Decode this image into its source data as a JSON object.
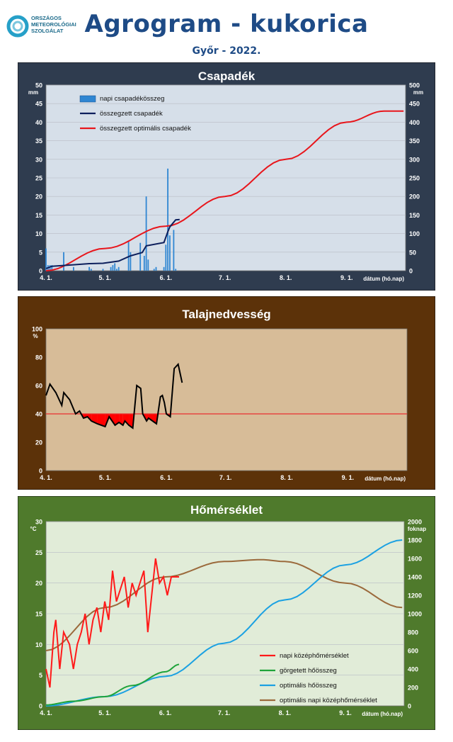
{
  "header": {
    "logo_lines": [
      "ORSZÁGOS",
      "METEOROLÓGIAI",
      "SZOLGÁLAT"
    ],
    "title": "Agrogram - kukorica",
    "subtitle": "Győr - 2022."
  },
  "chart_data": [
    {
      "type": "bar",
      "title": "Csapadék",
      "xlabel": "dátum (hó.nap)",
      "x_ticks": [
        "4. 1.",
        "5. 1.",
        "6. 1.",
        "7. 1.",
        "8. 1.",
        "9. 1."
      ],
      "ylabel_left": "mm",
      "ylim_left": [
        0,
        50
      ],
      "yticks_left": [
        0,
        5,
        10,
        15,
        20,
        25,
        30,
        35,
        40,
        45,
        50
      ],
      "ylabel_right": "mm",
      "ylim_right": [
        0,
        500
      ],
      "yticks_right": [
        0,
        50,
        100,
        150,
        200,
        250,
        300,
        350,
        400,
        450,
        500
      ],
      "legend_position": "top-left",
      "series": [
        {
          "name": "napi csapadékösszeg",
          "kind": "bar",
          "axis": "left",
          "color": "#2f86d2",
          "x": [
            "2022-04-01",
            "2022-04-02",
            "2022-04-03",
            "2022-04-04",
            "2022-04-10",
            "2022-04-15",
            "2022-04-23",
            "2022-04-24",
            "2022-04-30",
            "2022-05-04",
            "2022-05-05",
            "2022-05-06",
            "2022-05-07",
            "2022-05-08",
            "2022-05-13",
            "2022-05-14",
            "2022-05-19",
            "2022-05-21",
            "2022-05-22",
            "2022-05-23",
            "2022-05-26",
            "2022-05-27",
            "2022-05-31",
            "2022-06-01",
            "2022-06-02",
            "2022-06-03",
            "2022-06-05",
            "2022-06-06"
          ],
          "values": [
            6,
            1.5,
            1.5,
            1.5,
            5,
            1,
            1,
            0.5,
            0.5,
            1,
            1.5,
            2,
            0.5,
            1,
            8,
            5,
            7.5,
            4,
            20,
            3,
            0.5,
            1,
            1,
            7,
            27.5,
            9.5,
            11,
            0.5
          ]
        },
        {
          "name": "összegzett csapadék",
          "kind": "line",
          "axis": "right",
          "color": "#0d1f5c",
          "x": [
            "2022-04-01",
            "2022-04-04",
            "2022-04-15",
            "2022-04-23",
            "2022-04-30",
            "2022-05-08",
            "2022-05-14",
            "2022-05-20",
            "2022-05-22",
            "2022-05-31",
            "2022-06-02",
            "2022-06-03",
            "2022-06-06",
            "2022-06-08"
          ],
          "values": [
            6,
            12,
            16,
            19,
            20,
            26,
            40,
            49,
            67,
            76,
            105,
            118,
            137,
            138
          ]
        },
        {
          "name": "összegzett optimális csapadék",
          "kind": "line",
          "axis": "right",
          "color": "#e8161c",
          "x": [
            "2022-04-01",
            "2022-05-01",
            "2022-06-01",
            "2022-07-01",
            "2022-08-01",
            "2022-09-01",
            "2022-09-20",
            "2022-09-30"
          ],
          "values": [
            0,
            60,
            120,
            200,
            300,
            400,
            430,
            430
          ]
        }
      ]
    },
    {
      "type": "line",
      "title": "Talajnedvesség",
      "xlabel": "dátum (hó.nap)",
      "x_ticks": [
        "4. 1.",
        "5. 1.",
        "6. 1.",
        "7. 1.",
        "8. 1.",
        "9. 1."
      ],
      "ylabel": "%",
      "ylim": [
        0,
        100
      ],
      "yticks": [
        0,
        20,
        40,
        60,
        80,
        100
      ],
      "threshold": 40,
      "fill_below_threshold_color": "#ff0000",
      "series": [
        {
          "name": "talajnedvesség",
          "color": "#000000",
          "x": [
            "2022-04-01",
            "2022-04-03",
            "2022-04-06",
            "2022-04-09",
            "2022-04-10",
            "2022-04-13",
            "2022-04-16",
            "2022-04-18",
            "2022-04-20",
            "2022-04-22",
            "2022-04-24",
            "2022-04-27",
            "2022-05-01",
            "2022-05-03",
            "2022-05-06",
            "2022-05-08",
            "2022-05-10",
            "2022-05-11",
            "2022-05-13",
            "2022-05-15",
            "2022-05-17",
            "2022-05-19",
            "2022-05-20",
            "2022-05-22",
            "2022-05-23",
            "2022-05-25",
            "2022-05-27",
            "2022-05-29",
            "2022-05-30",
            "2022-05-31",
            "2022-06-01",
            "2022-06-03",
            "2022-06-05",
            "2022-06-07",
            "2022-06-09"
          ],
          "values": [
            53,
            61,
            55,
            46,
            55,
            50,
            40,
            42,
            37,
            38,
            35,
            33,
            31,
            38,
            32,
            34,
            32,
            35,
            32,
            30,
            60,
            58,
            40,
            35,
            37,
            35,
            33,
            52,
            53,
            48,
            40,
            38,
            72,
            75,
            62
          ]
        }
      ]
    },
    {
      "type": "line",
      "title": "Hőmérséklet",
      "xlabel": "dátum (hó.nap)",
      "x_ticks": [
        "4. 1.",
        "5. 1.",
        "6. 1.",
        "7. 1.",
        "8. 1.",
        "9. 1."
      ],
      "ylabel_left": "°C",
      "ylim_left": [
        0,
        30
      ],
      "yticks_left": [
        0,
        5,
        10,
        15,
        20,
        25,
        30
      ],
      "ylabel_right": "foknap",
      "ylim_right": [
        0,
        2000
      ],
      "yticks_right": [
        0,
        200,
        400,
        600,
        800,
        1000,
        1200,
        1400,
        1600,
        1800,
        2000
      ],
      "legend_position": "bottom-right",
      "series": [
        {
          "name": "napi középhőmérséklet",
          "axis": "left",
          "color": "#ff1a1a",
          "x": [
            "2022-04-01",
            "2022-04-03",
            "2022-04-05",
            "2022-04-06",
            "2022-04-08",
            "2022-04-10",
            "2022-04-13",
            "2022-04-15",
            "2022-04-17",
            "2022-04-19",
            "2022-04-21",
            "2022-04-23",
            "2022-04-25",
            "2022-04-27",
            "2022-04-29",
            "2022-05-01",
            "2022-05-03",
            "2022-05-05",
            "2022-05-07",
            "2022-05-09",
            "2022-05-11",
            "2022-05-13",
            "2022-05-15",
            "2022-05-17",
            "2022-05-19",
            "2022-05-21",
            "2022-05-23",
            "2022-05-25",
            "2022-05-27",
            "2022-05-29",
            "2022-05-31",
            "2022-06-02",
            "2022-06-04",
            "2022-06-06",
            "2022-06-08"
          ],
          "values": [
            6,
            3,
            12,
            14,
            6,
            12,
            10,
            6,
            10,
            12,
            15,
            10,
            14,
            16,
            12,
            17,
            14,
            22,
            17,
            19,
            21,
            16,
            20,
            18,
            20,
            22,
            12,
            18,
            24,
            20,
            21,
            18,
            21,
            21,
            21
          ]
        },
        {
          "name": "görgetett hőösszeg",
          "axis": "right",
          "color": "#1fa33a",
          "x": [
            "2022-04-01",
            "2022-04-15",
            "2022-05-01",
            "2022-05-15",
            "2022-06-01",
            "2022-06-08"
          ],
          "values": [
            10,
            50,
            100,
            220,
            370,
            450
          ]
        },
        {
          "name": "optimális hőösszeg",
          "axis": "right",
          "color": "#1ba1e2",
          "x": [
            "2022-04-01",
            "2022-05-01",
            "2022-06-01",
            "2022-07-01",
            "2022-08-01",
            "2022-09-01",
            "2022-09-30"
          ],
          "values": [
            0,
            100,
            320,
            680,
            1150,
            1530,
            1800
          ]
        },
        {
          "name": "optimális napi középhőmérséklet",
          "axis": "left",
          "color": "#9b6a3c",
          "x": [
            "2022-04-01",
            "2022-05-01",
            "2022-06-01",
            "2022-07-01",
            "2022-07-20",
            "2022-08-01",
            "2022-09-01",
            "2022-09-30"
          ],
          "values": [
            9,
            16,
            21,
            23.5,
            23.8,
            23.5,
            20,
            16
          ]
        }
      ]
    }
  ],
  "colors": {
    "precip_frame": "#2f3c4f",
    "soil_frame": "#5c3209",
    "temp_frame": "#4f7a2c",
    "precip_plot": "#d6dfe9",
    "soil_plot": "#d7bc98",
    "temp_plot": "#e1ecd8"
  }
}
